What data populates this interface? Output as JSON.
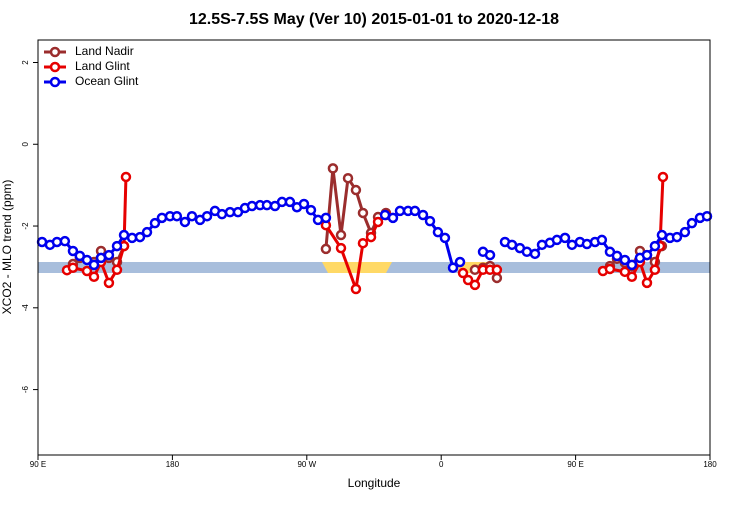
{
  "chart_data": {
    "type": "line",
    "title": "12.5S-7.5S May (Ver 10)   2015-01-01 to 2020-12-18",
    "x_label": "Longitude",
    "y_label": "XCO2 - MLO trend (ppm)",
    "xlim": [
      90,
      540
    ],
    "xticks": [
      {
        "value": 90,
        "label": "90 E"
      },
      180,
      {
        "value": 270,
        "label": "90 W"
      },
      {
        "value": 360,
        "label": "0"
      },
      {
        "value": 450,
        "label": "90 E"
      },
      {
        "value": 540,
        "label": "180"
      }
    ],
    "ylim": [
      -7.6,
      2.55
    ],
    "yticks": [
      2,
      0,
      -2,
      -4,
      -6
    ],
    "legend": "top-left",
    "series": [
      {
        "name": "Land Nadir",
        "color": "#9b2d2d",
        "x": [
          113.4,
          118,
          127.5,
          132.2,
          137.5,
          142.9,
          147.6,
          null,
          282.8,
          287.5,
          292.9,
          297.6,
          302.9,
          307.6,
          313,
          317.7,
          323,
          null,
          382.6,
          388,
          392.7,
          397.3,
          null,
          473,
          477.7,
          483,
          487.7,
          493.1,
          497.8,
          503.1,
          507.8
        ],
        "values": [
          -2.93,
          -2.78,
          -2.88,
          -2.61,
          -2.78,
          -2.88,
          -2.49,
          null,
          -2.56,
          -0.59,
          -2.22,
          -0.83,
          -1.12,
          -1.68,
          -2.17,
          -1.78,
          -1.68,
          null,
          -3.07,
          -3.02,
          -2.98,
          -3.27,
          null,
          -2.98,
          -2.8,
          -2.9,
          -2.98,
          -2.61,
          -2.71,
          -2.88,
          -2.49
        ]
      },
      {
        "name": "Land Glint",
        "color": "#e60000",
        "x": [
          109.4,
          113.4,
          122.8,
          127.5,
          132.2,
          137.5,
          142.9,
          147.6,
          148.9,
          null,
          282.8,
          292.9,
          302.9,
          307.6,
          313,
          317.7,
          323,
          null,
          374.6,
          378,
          382.6,
          388,
          392.7,
          397.3,
          null,
          468.3,
          473,
          483,
          487.7,
          493.1,
          497.8,
          503.1,
          506.5,
          508.5
        ],
        "values": [
          -3.08,
          -3.02,
          -3.1,
          -3.24,
          -2.88,
          -3.39,
          -3.07,
          -2.49,
          -0.8,
          null,
          -1.98,
          -2.54,
          -3.54,
          -2.42,
          -2.27,
          -1.9,
          -1.73,
          null,
          -3.15,
          -3.32,
          -3.44,
          -3.07,
          -3.07,
          -3.07,
          null,
          -3.1,
          -3.05,
          -3.12,
          -3.24,
          -2.88,
          -3.39,
          -3.07,
          -2.49,
          -0.8
        ]
      },
      {
        "name": "Ocean Glint",
        "color": "#0000ee",
        "x": [
          92.7,
          98,
          102.7,
          108,
          113.4,
          118,
          122.8,
          127.5,
          132.2,
          137.5,
          142.9,
          147.6,
          153,
          158.3,
          163,
          168.3,
          173,
          178.4,
          183,
          188.4,
          193.1,
          198.5,
          203.2,
          208.5,
          213.2,
          218.6,
          223.9,
          228.6,
          233.3,
          238.7,
          243.3,
          248.7,
          253.4,
          258.7,
          263.4,
          268.1,
          272.8,
          277.5,
          282.8,
          null,
          322.4,
          327.7,
          332.4,
          337.8,
          342.4,
          347.8,
          352.5,
          357.8,
          362.5,
          367.9,
          372.6,
          null,
          388,
          392.7,
          null,
          402.7,
          407.4,
          412.7,
          417.4,
          422.8,
          427.5,
          432.8,
          437.5,
          442.9,
          447.6,
          452.9,
          457.6,
          463,
          467.6,
          473,
          477.7,
          483,
          487.7,
          493.1,
          497.8,
          503.1,
          507.8,
          513.2,
          517.9,
          523.2,
          527.9,
          533.3,
          538
        ],
        "values": [
          -2.39,
          -2.46,
          -2.39,
          -2.37,
          -2.61,
          -2.73,
          -2.83,
          -2.95,
          -2.78,
          -2.71,
          -2.49,
          -2.22,
          -2.29,
          -2.27,
          -2.15,
          -1.93,
          -1.8,
          -1.76,
          -1.76,
          -1.9,
          -1.76,
          -1.85,
          -1.76,
          -1.63,
          -1.71,
          -1.66,
          -1.66,
          -1.56,
          -1.51,
          -1.49,
          -1.49,
          -1.51,
          -1.41,
          -1.41,
          -1.54,
          -1.46,
          -1.61,
          -1.85,
          -1.8,
          null,
          -1.73,
          -1.8,
          -1.63,
          -1.63,
          -1.63,
          -1.73,
          -1.88,
          -2.15,
          -2.29,
          -3.02,
          -2.88,
          null,
          -2.63,
          -2.71,
          null,
          -2.39,
          -2.46,
          -2.54,
          -2.63,
          -2.68,
          -2.46,
          -2.41,
          -2.34,
          -2.29,
          -2.46,
          -2.39,
          -2.44,
          -2.39,
          -2.34,
          -2.63,
          -2.73,
          -2.83,
          -2.95,
          -2.78,
          -2.71,
          -2.49,
          -2.22,
          -2.29,
          -2.27,
          -2.15,
          -1.93,
          -1.8,
          -1.76
        ]
      }
    ]
  }
}
